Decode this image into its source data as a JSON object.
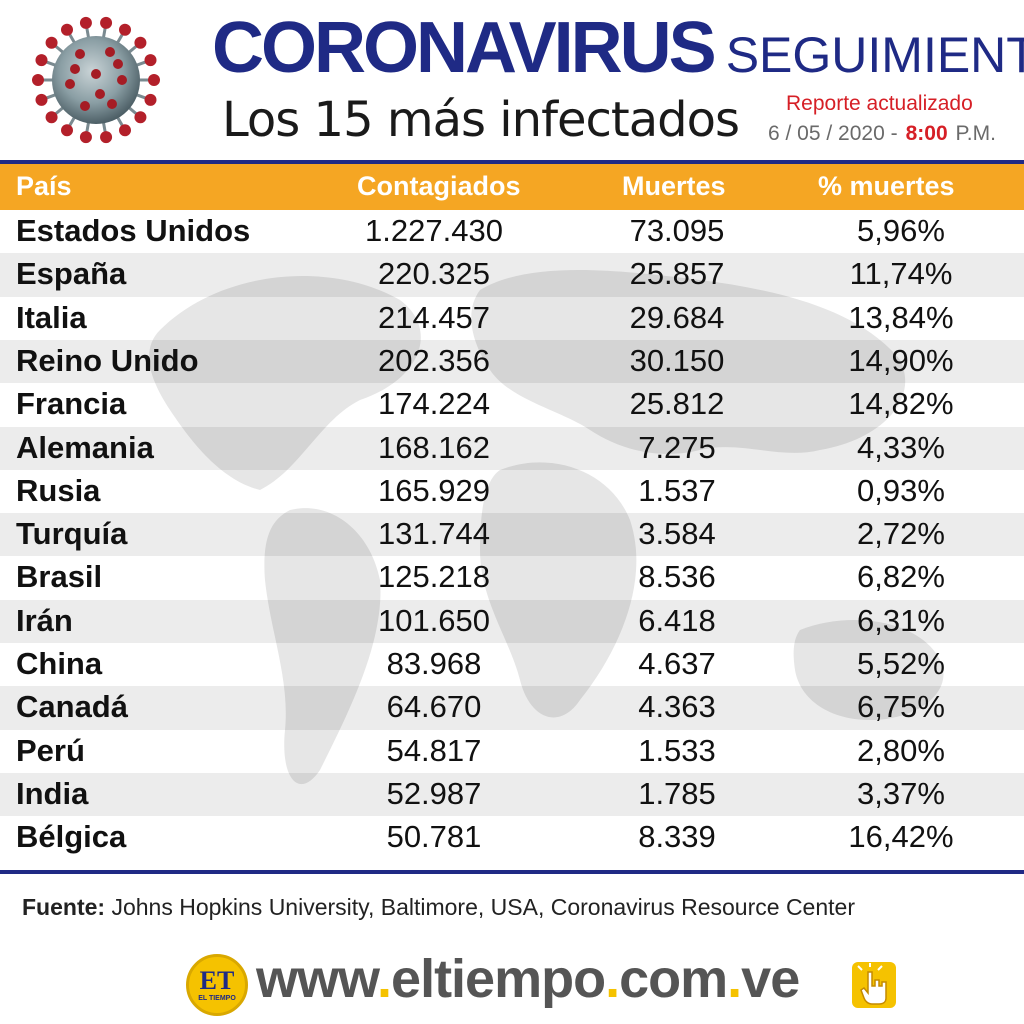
{
  "header": {
    "title_word1": "Coronavirus",
    "title_word2": "seguimiento",
    "subtitle": "Los 15 más infectados",
    "report_label": "Reporte actualizado",
    "report_date": "6 / 05 / 2020 -",
    "report_time": "8:00",
    "report_ampm": "P.M."
  },
  "table": {
    "columns": [
      "País",
      "Contagiados",
      "Muertes",
      "% muertes"
    ],
    "rows": [
      {
        "country": "Estados Unidos",
        "infected": "1.227.430",
        "deaths": "73.095",
        "pct": "5,96%"
      },
      {
        "country": "España",
        "infected": "220.325",
        "deaths": "25.857",
        "pct": "11,74%"
      },
      {
        "country": "Italia",
        "infected": "214.457",
        "deaths": "29.684",
        "pct": "13,84%"
      },
      {
        "country": "Reino Unido",
        "infected": "202.356",
        "deaths": "30.150",
        "pct": "14,90%"
      },
      {
        "country": "Francia",
        "infected": "174.224",
        "deaths": "25.812",
        "pct": "14,82%"
      },
      {
        "country": "Alemania",
        "infected": "168.162",
        "deaths": "7.275",
        "pct": "4,33%"
      },
      {
        "country": "Rusia",
        "infected": "165.929",
        "deaths": "1.537",
        "pct": "0,93%"
      },
      {
        "country": "Turquía",
        "infected": "131.744",
        "deaths": "3.584",
        "pct": "2,72%"
      },
      {
        "country": "Brasil",
        "infected": "125.218",
        "deaths": "8.536",
        "pct": "6,82%"
      },
      {
        "country": "Irán",
        "infected": "101.650",
        "deaths": "6.418",
        "pct": "6,31%"
      },
      {
        "country": "China",
        "infected": "83.968",
        "deaths": "4.637",
        "pct": "5,52%"
      },
      {
        "country": "Canadá",
        "infected": "64.670",
        "deaths": "4.363",
        "pct": "6,75%"
      },
      {
        "country": "Perú",
        "infected": "54.817",
        "deaths": "1.533",
        "pct": "2,80%"
      },
      {
        "country": "India",
        "infected": "52.987",
        "deaths": "1.785",
        "pct": "3,37%"
      },
      {
        "country": "Bélgica",
        "infected": "50.781",
        "deaths": "8.339",
        "pct": "16,42%"
      }
    ]
  },
  "source": {
    "label": "Fuente:",
    "text": "Johns Hopkins University, Baltimore, USA, Coronavirus Resource Center"
  },
  "footer": {
    "logo_text": "ET",
    "logo_subtext": "EL TIEMPO",
    "url_parts": [
      "www",
      ".",
      "eltiempo",
      ".",
      "com",
      ".",
      "ve"
    ]
  },
  "icons": {
    "virus": "coronavirus-icon",
    "hand": "hand-pointer-icon"
  },
  "colors": {
    "brand_blue": "#1f2a85",
    "header_orange": "#f5a623",
    "accent_red": "#d61f26",
    "logo_yellow": "#f5c200"
  }
}
